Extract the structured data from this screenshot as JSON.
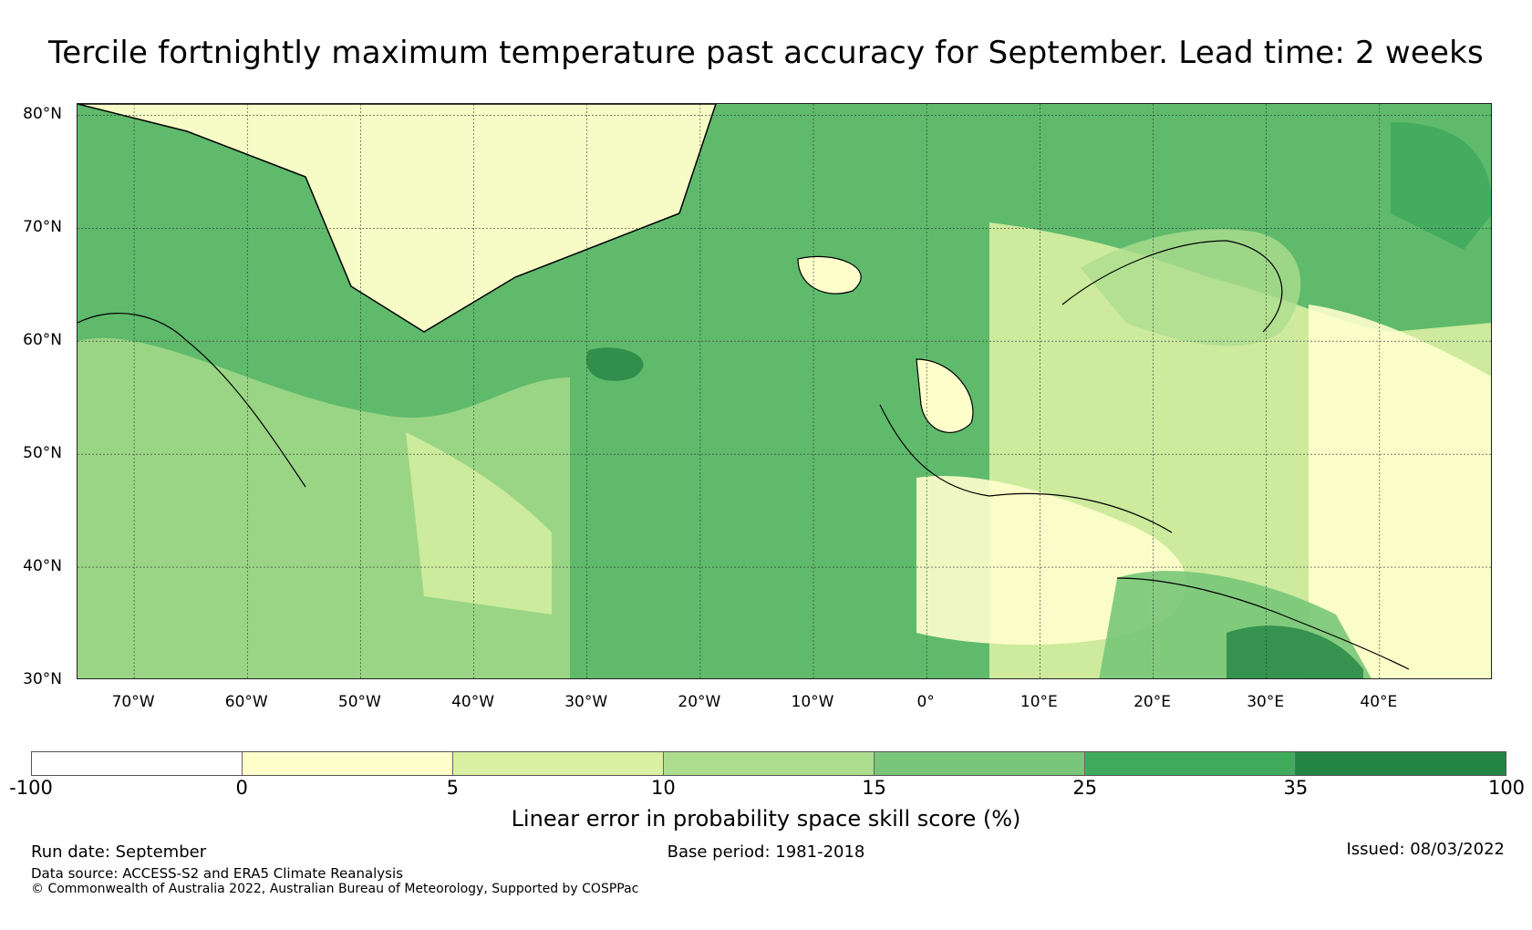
{
  "title": "Tercile fortnightly maximum temperature past accuracy for September. Lead time: 2 weeks",
  "map": {
    "lat_ticks": [
      "80°N",
      "70°N",
      "60°N",
      "50°N",
      "40°N",
      "30°N"
    ],
    "lon_ticks": [
      "70°W",
      "60°W",
      "50°W",
      "40°W",
      "30°W",
      "20°W",
      "10°W",
      "0°",
      "10°E",
      "20°E",
      "30°E",
      "40°E"
    ],
    "extent": {
      "lon_min": -75,
      "lon_max": 50,
      "lat_min": 30,
      "lat_max": 81
    },
    "lat_values": [
      80,
      70,
      60,
      50,
      40,
      30
    ],
    "lon_values": [
      -70,
      -60,
      -50,
      -40,
      -30,
      -20,
      -10,
      0,
      10,
      20,
      30,
      40
    ]
  },
  "colorbar": {
    "label": "Linear error in probability space skill score (%)",
    "ticks": [
      "-100",
      "0",
      "5",
      "10",
      "15",
      "25",
      "35",
      "100"
    ],
    "colors": [
      "#ffffff",
      "#ffffcc",
      "#d9f0a3",
      "#addd8e",
      "#78c679",
      "#41ab5d",
      "#238443"
    ]
  },
  "footer": {
    "run_date": "Run date: September",
    "base_period": "Base period: 1981-2018",
    "issued": "Issued: 08/03/2022",
    "data_source": "Data source: ACCESS-S2 and ERA5 Climate Reanalysis",
    "copyright": "© Commonwealth of Australia 2022, Australian Bureau of Meteorology, Supported by COSPPac"
  }
}
